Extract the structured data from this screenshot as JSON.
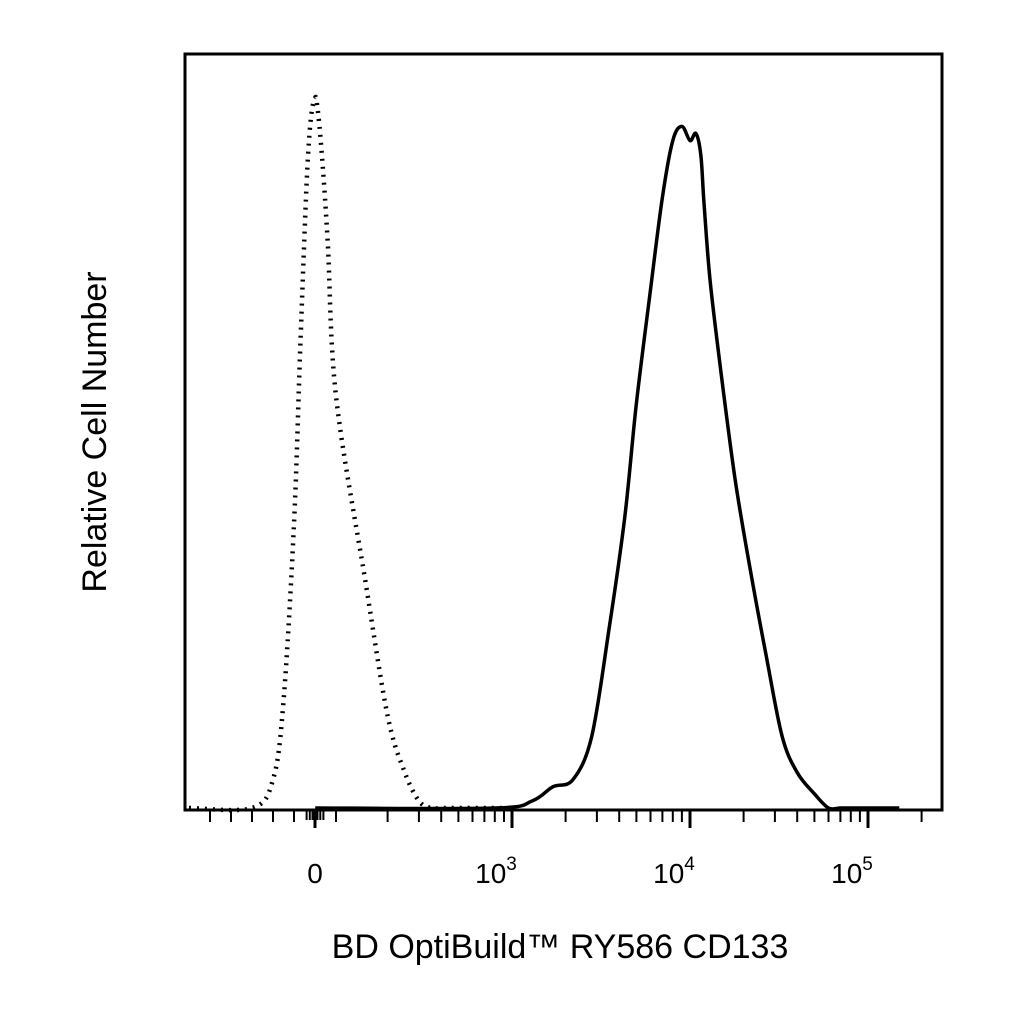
{
  "chart_data": {
    "type": "line",
    "title": "",
    "xlabel": "BD OptiBuild™ RY586 CD133",
    "ylabel": "Relative Cell Number",
    "x_scale": "biexponential",
    "xlim": [
      -600,
      150000
    ],
    "ylim": [
      0,
      100
    ],
    "grid": false,
    "legend": "none",
    "x_ticks": [
      {
        "value": 0,
        "base": "0",
        "exp": ""
      },
      {
        "value": 1000,
        "base": "10",
        "exp": "3"
      },
      {
        "value": 10000,
        "base": "10",
        "exp": "4"
      },
      {
        "value": 100000,
        "base": "10",
        "exp": "5"
      }
    ],
    "series": [
      {
        "style": "dotted",
        "color": "#000000",
        "x": [
          -600,
          -300,
          -200,
          -150,
          -100,
          -70,
          -40,
          -20,
          0,
          10,
          30,
          60,
          100,
          150,
          200,
          250,
          300,
          350,
          400,
          500,
          1000
        ],
        "y": [
          0,
          0,
          4,
          15,
          40,
          65,
          88,
          97,
          100,
          99,
          93,
          80,
          58,
          32,
          13,
          5,
          1,
          0,
          0,
          0,
          0
        ]
      },
      {
        "style": "solid",
        "color": "#000000",
        "x": [
          1,
          800,
          1300,
          1700,
          2200,
          2800,
          3500,
          4300,
          5000,
          6000,
          7000,
          8000,
          9000,
          10000,
          10800,
          11500,
          12000,
          13000,
          15000,
          18000,
          22000,
          27000,
          33000,
          40000,
          50000,
          60000,
          70000,
          80000,
          150000
        ],
        "y": [
          0,
          0,
          1,
          3,
          4,
          10,
          25,
          41,
          57,
          73,
          86,
          94,
          96,
          94,
          95,
          92,
          85,
          74,
          61,
          46,
          33,
          21,
          10,
          5,
          2,
          0,
          0,
          0,
          0
        ]
      }
    ]
  }
}
